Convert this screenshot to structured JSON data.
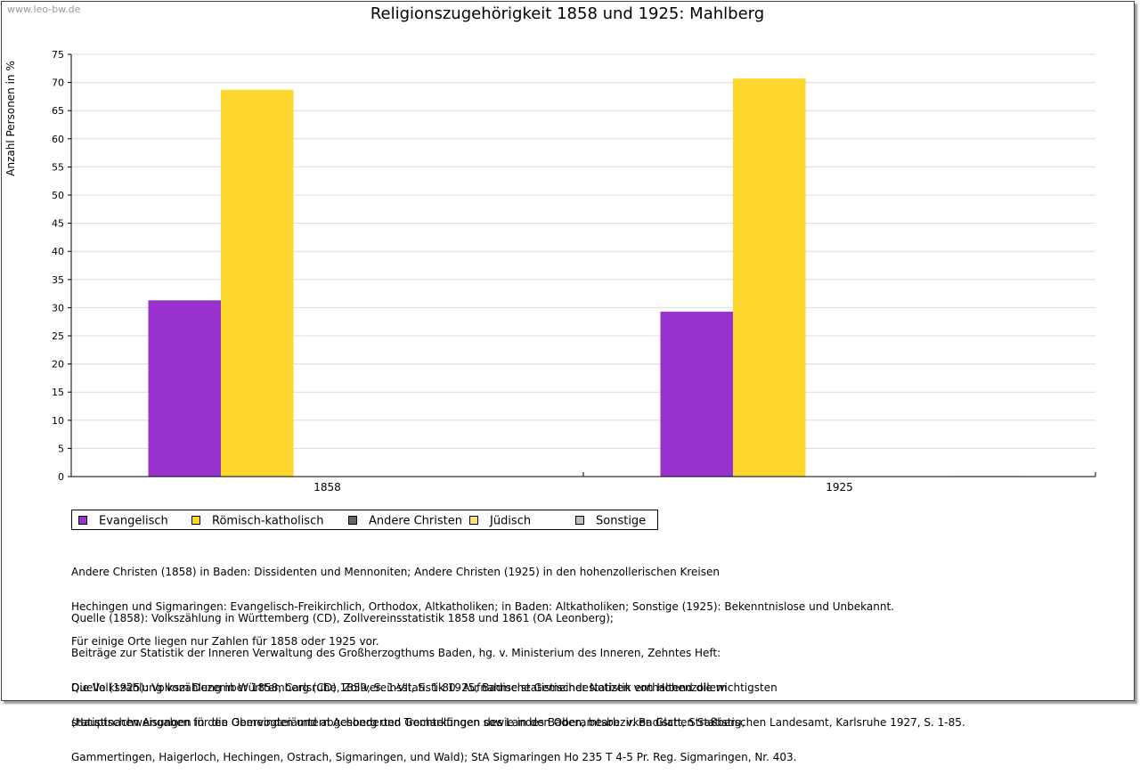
{
  "watermark": "www.leo-bw.de",
  "chart_data": {
    "type": "bar",
    "title": "Religionszugehörigkeit 1858 und 1925: Mahlberg",
    "ylabel": "Anzahl Personen in %",
    "xlabel": "",
    "ylim": [
      0,
      75
    ],
    "yticks": [
      0,
      5,
      10,
      15,
      20,
      25,
      30,
      35,
      40,
      45,
      50,
      55,
      60,
      65,
      70,
      75
    ],
    "categories": [
      "1858",
      "1925"
    ],
    "grid": true,
    "legend_position": "bottom-left",
    "series": [
      {
        "name": "Evangelisch",
        "color": "#9932cc",
        "values": [
          31.3,
          29.3
        ]
      },
      {
        "name": "Römisch-katholisch",
        "color": "#fdd62e",
        "values": [
          68.7,
          70.7
        ]
      },
      {
        "name": "Andere Christen",
        "color": "#666666",
        "values": [
          0,
          0
        ]
      },
      {
        "name": "Jüdisch",
        "color": "#fde47a",
        "values": [
          0,
          0
        ]
      },
      {
        "name": "Sonstige",
        "color": "#c0c0c0",
        "values": [
          0,
          0.1
        ]
      }
    ]
  },
  "notes": {
    "andere": [
      "Andere Christen (1858) in Baden: Dissidenten und Mennoniten; Andere Christen (1925) in den hohenzollerischen Kreisen",
      "Hechingen und Sigmaringen: Evangelisch-Freikirchlich, Orthodox, Altkatholiken; in Baden: Altkatholiken; Sonstige (1925): Bekenntnislose und Unbekannt.",
      "Für einige Orte liegen nur Zahlen für 1858 oder 1925 vor."
    ],
    "quelle1858": [
      "Quelle (1858): Volkszählung in Württemberg (CD), Zollvereinsstatistik 1858 und 1861 (OA Leonberg);",
      "Beiträge zur Statistik der Inneren Verwaltung des Großherzogthums Baden, hg. v. Ministerium des Inneren, Zehntes Heft:",
      "Die Volkszählung vom Dezember 1858, Carlsruhe 1859, S. 1-VII, S. 1-80. Aufnahme statistischer Notizen von Hohenzollern",
      "(Hauptnachweisungen in den Obervogteiämtern Achberg und Trochtelfingen sowie in den Oberamtsbezirken Glatt, Straßberg,",
      "Gammertingen, Haigerloch, Hechingen, Ostrach, Sigmaringen, und Wald); StA Sigmaringen Ho 235 T 4-5 Pr. Reg. Sigmaringen, Nr. 403."
    ],
    "quelle1925": [
      "Quelle (1925): Volkszählung in Württemberg (CD), Zollvereinsstatistik 1925; Badische Gemeindestatistik enthaltend die wichtigsten",
      "statistischen Angaben für die Gemeinden und abgesonderten Gemarkungen des Landes Baden, bearb. v. Badischen Statistischen Landesamt, Karlsruhe 1927, S. 1-85."
    ]
  }
}
